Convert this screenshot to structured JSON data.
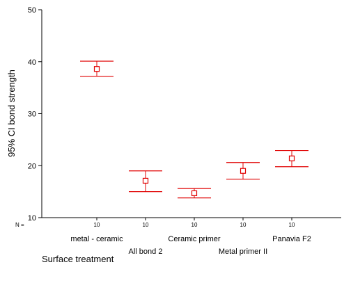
{
  "chart_data": {
    "type": "error-bar",
    "title": "",
    "xlabel": "Surface treatment",
    "ylabel": "95% CI bond strength",
    "ylim": [
      10,
      50
    ],
    "yticks": [
      10,
      20,
      30,
      40,
      50
    ],
    "n_prefix": "N =",
    "categories": [
      "metal - ceramic",
      "All bond 2",
      "Ceramic primer",
      "Metal primer II",
      "Panavia F2"
    ],
    "label_rows": [
      0,
      1,
      0,
      1,
      0
    ],
    "n": [
      "10",
      "10",
      "10",
      "10",
      "10"
    ],
    "mean": [
      38.6,
      17.1,
      14.7,
      19.0,
      21.4
    ],
    "lower": [
      37.2,
      15.0,
      13.8,
      17.4,
      19.8
    ],
    "upper": [
      40.1,
      19.0,
      15.6,
      20.6,
      22.9
    ],
    "color": "#e00000",
    "grid": false
  }
}
